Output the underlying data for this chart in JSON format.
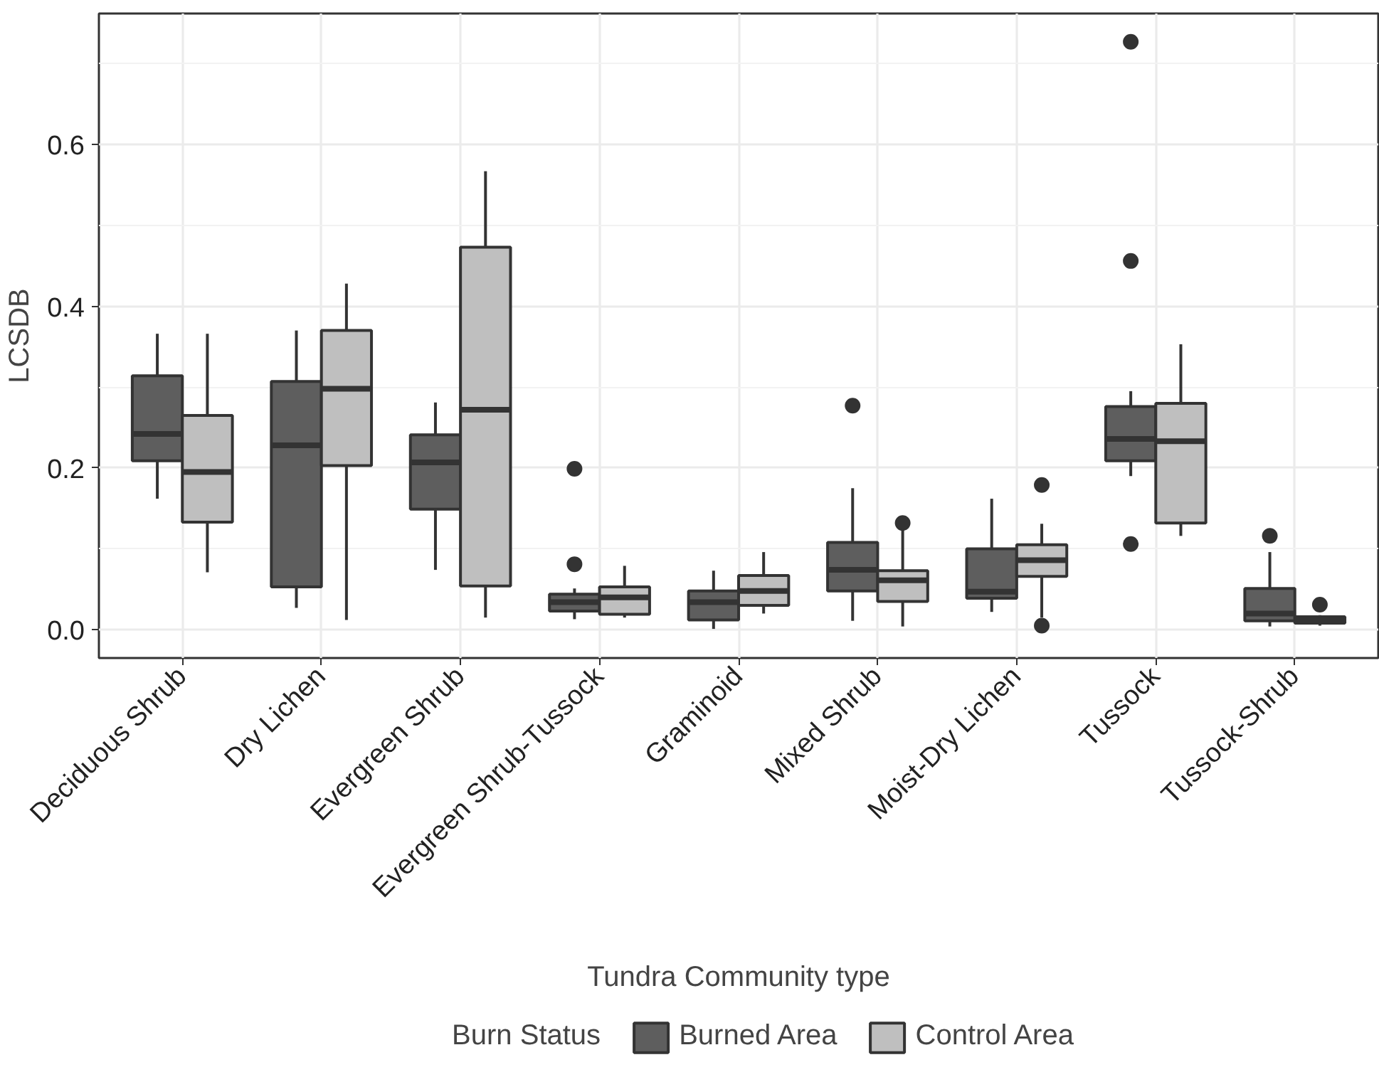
{
  "chart_data": {
    "type": "box",
    "xlabel": "Tundra Community type",
    "ylabel": "LCSDB",
    "legend_title": "Burn Status",
    "legend": "bottom",
    "grid": true,
    "categories": [
      "Deciduous Shrub",
      "Dry Lichen",
      "Evergreen Shrub",
      "Evergreen Shrub-Tussock",
      "Graminoid",
      "Mixed Shrub",
      "Moist-Dry Lichen",
      "Tussock",
      "Tussock-Shrub"
    ],
    "ylim": [
      -0.035,
      0.762
    ],
    "yticks": [
      {
        "value": 0,
        "label": "0.0"
      },
      {
        "value": 0.2,
        "label": "0.2"
      },
      {
        "value": 0.4,
        "label": "0.4"
      },
      {
        "value": 0.6,
        "label": "0.6"
      }
    ],
    "series": [
      {
        "name": "Burned Area",
        "color": "#5e5e5e",
        "boxes": [
          {
            "low": 0.162,
            "q1": 0.209,
            "median": 0.242,
            "q3": 0.314,
            "high": 0.366
          },
          {
            "low": 0.027,
            "q1": 0.053,
            "median": 0.228,
            "q3": 0.307,
            "high": 0.37
          },
          {
            "low": 0.074,
            "q1": 0.149,
            "median": 0.207,
            "q3": 0.241,
            "high": 0.281
          },
          {
            "low": 0.013,
            "q1": 0.023,
            "median": 0.034,
            "q3": 0.044,
            "high": 0.051,
            "outliers": [
              0.199,
              0.081
            ]
          },
          {
            "low": 0.001,
            "q1": 0.012,
            "median": 0.034,
            "q3": 0.048,
            "high": 0.073
          },
          {
            "low": 0.011,
            "q1": 0.048,
            "median": 0.074,
            "q3": 0.108,
            "high": 0.175,
            "outliers": [
              0.277
            ]
          },
          {
            "low": 0.022,
            "q1": 0.039,
            "median": 0.047,
            "q3": 0.1,
            "high": 0.162
          },
          {
            "low": 0.19,
            "q1": 0.209,
            "median": 0.236,
            "q3": 0.276,
            "high": 0.295,
            "outliers": [
              0.727,
              0.456,
              0.106
            ]
          },
          {
            "low": 0.004,
            "q1": 0.011,
            "median": 0.02,
            "q3": 0.051,
            "high": 0.096,
            "outliers": [
              0.116
            ]
          }
        ]
      },
      {
        "name": "Control Area",
        "color": "#bfbfbf",
        "boxes": [
          {
            "low": 0.071,
            "q1": 0.133,
            "median": 0.195,
            "q3": 0.265,
            "high": 0.366
          },
          {
            "low": 0.012,
            "q1": 0.203,
            "median": 0.298,
            "q3": 0.37,
            "high": 0.428
          },
          {
            "low": 0.015,
            "q1": 0.054,
            "median": 0.272,
            "q3": 0.473,
            "high": 0.567
          },
          {
            "low": 0.015,
            "q1": 0.019,
            "median": 0.04,
            "q3": 0.053,
            "high": 0.079
          },
          {
            "low": 0.02,
            "q1": 0.03,
            "median": 0.048,
            "q3": 0.067,
            "high": 0.096
          },
          {
            "low": 0.004,
            "q1": 0.035,
            "median": 0.061,
            "q3": 0.073,
            "high": 0.125,
            "outliers": [
              0.132
            ]
          },
          {
            "low": 0.015,
            "q1": 0.066,
            "median": 0.086,
            "q3": 0.105,
            "high": 0.131,
            "outliers": [
              0.179,
              0.005
            ]
          },
          {
            "low": 0.116,
            "q1": 0.132,
            "median": 0.233,
            "q3": 0.28,
            "high": 0.353
          },
          {
            "low": 0.005,
            "q1": 0.008,
            "median": 0.011,
            "q3": 0.016,
            "high": 0.018,
            "outliers": [
              0.031
            ]
          }
        ]
      }
    ]
  }
}
